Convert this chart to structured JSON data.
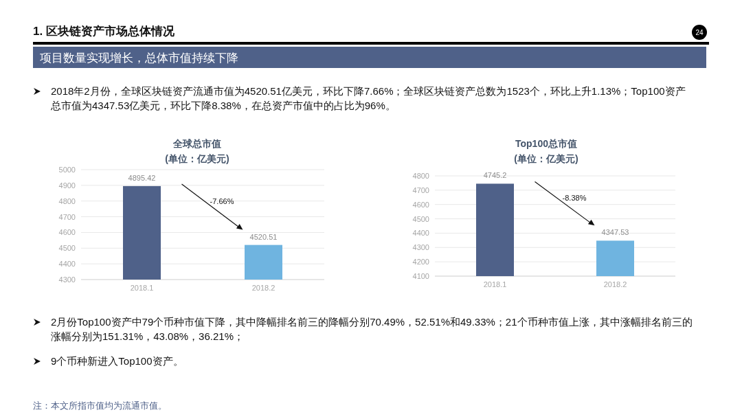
{
  "chart_data": [
    {
      "type": "other",
      "title": "1. 区块链资产市场总体情况",
      "subtitle": "项目数量实现增长，总体市值持续下降",
      "annotations": [
        "2018年2月份，全球区块链资产流通市值为4520.51亿美元，环比下降7.66%；全球区块链资产总数为1523个，环比上升1.13%；Top100资产总市值为4347.53亿美元，环比下降8.38%，在总资产市值中的占比为96%。",
        "2月份Top100资产中79个币种市值下降，其中降幅排名前三的降幅分别70.49%，52.51%和49.33%；21个币种市值上涨，其中涨幅排名前三的涨幅分别为151.31%，43.08%，36.21%；",
        "9个币种新进入Top100资产。",
        "注：本文所指市值均为流通市值。",
        "24"
      ]
    },
    {
      "type": "bar",
      "title": "全球总市值",
      "subtitle": "(单位：亿美元)",
      "categories": [
        "2018.1",
        "2018.2"
      ],
      "values": [
        4895.42,
        4520.51
      ],
      "colors": [
        "#4f6189",
        "#6fb4e0"
      ],
      "ylim": [
        4300,
        5000
      ],
      "yticks": [
        4300,
        4400,
        4500,
        4600,
        4700,
        4800,
        4900,
        5000
      ],
      "grid": "y",
      "data_labels": true,
      "annotations": [
        "-7.66%"
      ]
    },
    {
      "type": "bar",
      "title": "Top100总市值",
      "subtitle": "(单位：亿美元)",
      "categories": [
        "2018.1",
        "2018.2"
      ],
      "values": [
        4745.2,
        4347.53
      ],
      "colors": [
        "#4f6189",
        "#6fb4e0"
      ],
      "ylim": [
        4100,
        4800
      ],
      "yticks": [
        4100,
        4200,
        4300,
        4400,
        4500,
        4600,
        4700,
        4800
      ],
      "grid": "y",
      "data_labels": true,
      "annotations": [
        "-8.38%"
      ]
    }
  ]
}
